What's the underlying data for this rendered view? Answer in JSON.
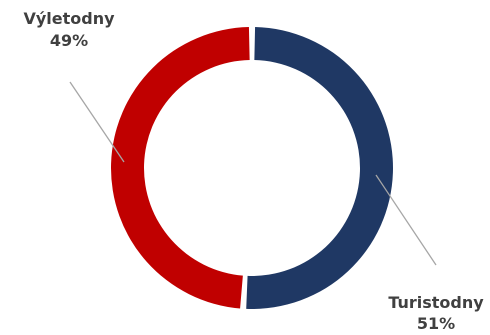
{
  "chart_data": {
    "type": "pie",
    "variant": "donut",
    "title": "",
    "slices": [
      {
        "label": "Turistodny",
        "percent_label": "51%",
        "value": 51,
        "color": "#1f3864"
      },
      {
        "label": "Výletodny",
        "percent_label": "49%",
        "value": 49,
        "color": "#c00000"
      }
    ],
    "legend": "none",
    "data_labels": "outside-with-leader-lines"
  }
}
